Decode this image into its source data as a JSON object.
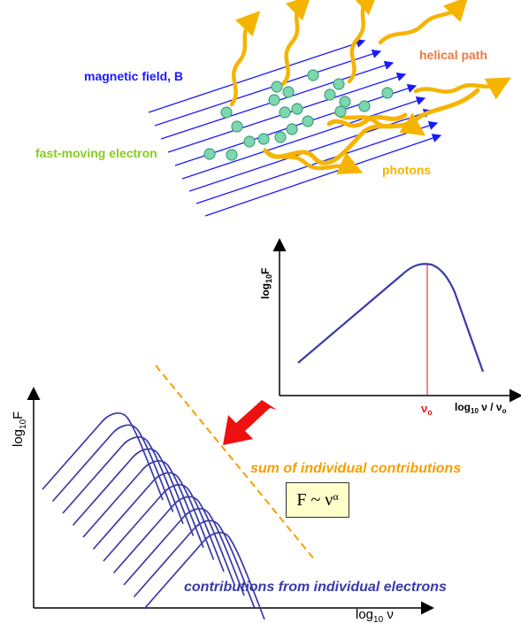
{
  "top": {
    "magnetic_field_label": "magnetic field, B",
    "helical_path_label": "helical path",
    "electron_label": "fast-moving electron",
    "photons_label": "photons"
  },
  "peak_plot": {
    "ylabel_main": "log",
    "ylabel_sub": "10",
    "ylabel_end": "F",
    "xlabel_main": "log",
    "xlabel_sub": "10",
    "xlabel_mid": " ν / ν",
    "xlabel_end_sub": "o",
    "peak_label": "ν",
    "peak_label_sub": "o"
  },
  "main_plot": {
    "ylabel_main": "log",
    "ylabel_sub": "10",
    "ylabel_end": "F",
    "xlabel_main": "log",
    "xlabel_sub": "10",
    "xlabel_end": " ν",
    "sum_label": "sum of individual contributions",
    "contrib_label": "contributions from individual electrons",
    "formula_lhs": "F ~ ν",
    "formula_exp": "α"
  },
  "colors": {
    "field_lines": "#1a1aff",
    "electrons": "#7ed6b0",
    "photons": "#f5b400",
    "helical": "#f07840",
    "electron_label": "#88cc22",
    "curves": "#3a3aa8",
    "sum_line": "#f5a000",
    "arrow": "#ee1111",
    "peak_marker": "#ee1111"
  }
}
